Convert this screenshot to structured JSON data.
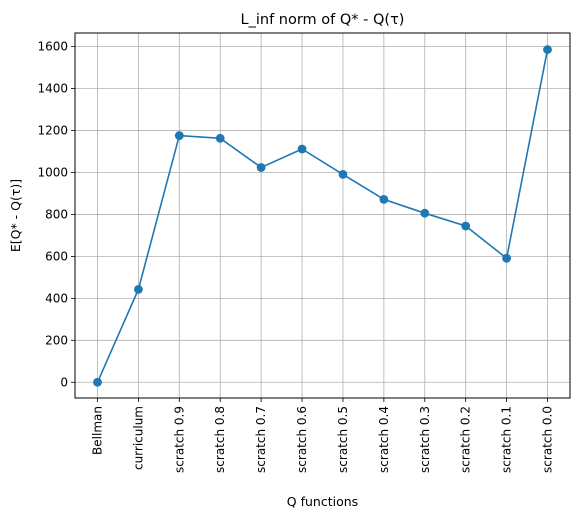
{
  "chart_data": {
    "type": "line",
    "title": "L_inf norm of Q* - Q(τ)",
    "xlabel": "Q functions",
    "ylabel": "E[Q* - Q(τ)]",
    "categories": [
      "Bellman",
      "curriculum",
      "scratch 0.9",
      "scratch 0.8",
      "scratch 0.7",
      "scratch 0.6",
      "scratch 0.5",
      "scratch 0.4",
      "scratch 0.3",
      "scratch 0.2",
      "scratch 0.1",
      "scratch 0.0"
    ],
    "series": [
      {
        "values": [
          0,
          443,
          1176,
          1163,
          1024,
          1112,
          991,
          872,
          806,
          745,
          591,
          1586
        ]
      }
    ],
    "ylim": [
      -75,
      1665
    ],
    "yticks": [
      0,
      200,
      400,
      600,
      800,
      1000,
      1200,
      1400,
      1600
    ],
    "grid": true,
    "markers": "circle",
    "line_color": "#1f77b4"
  }
}
